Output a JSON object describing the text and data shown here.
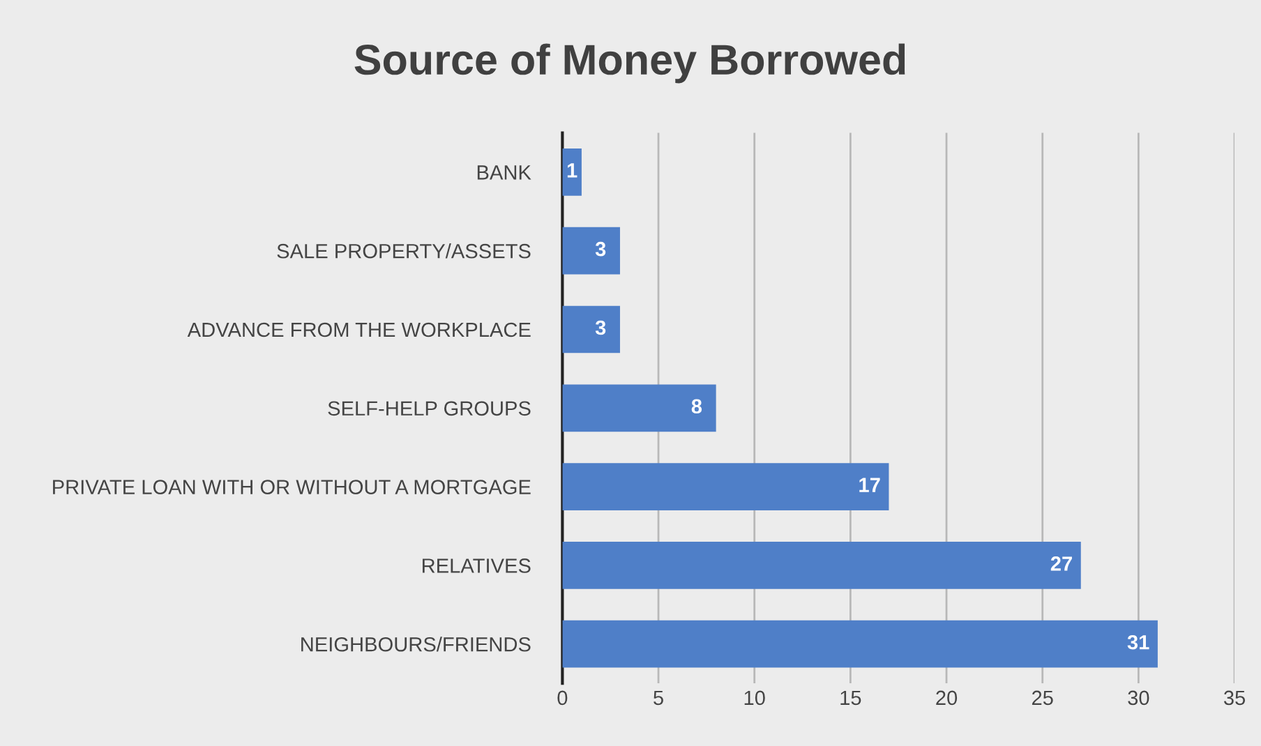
{
  "chart_data": {
    "type": "bar",
    "orientation": "horizontal",
    "title": "Source of Money Borrowed",
    "categories": [
      "BANK",
      "SALE PROPERTY/ASSETS",
      "ADVANCE FROM THE WORKPLACE",
      "SELF-HELP GROUPS",
      "PRIVATE LOAN WITH OR WITHOUT A MORTGAGE",
      "RELATIVES",
      "NEIGHBOURS/FRIENDS"
    ],
    "values": [
      1,
      3,
      3,
      8,
      17,
      27,
      31
    ],
    "color": "#4f7fc8",
    "xlim": [
      0,
      35
    ],
    "xticks": [
      0,
      5,
      10,
      15,
      20,
      25,
      30,
      35
    ],
    "grid": "x",
    "data_labels": true,
    "legend": false
  }
}
